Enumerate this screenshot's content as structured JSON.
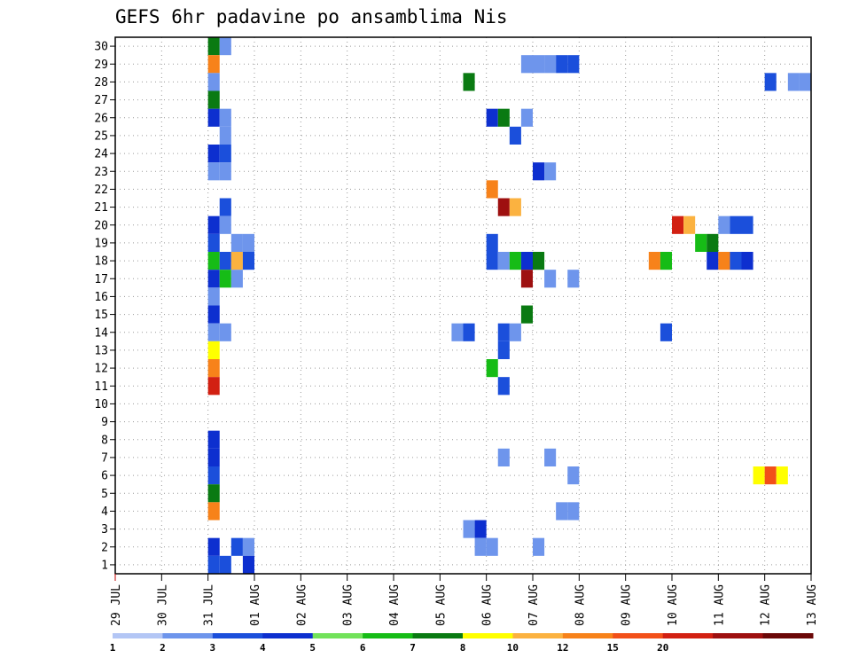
{
  "chart_data": {
    "type": "heatmap",
    "title": "GEFS 6hr padavine po ansamblima Nis",
    "xlabel": "",
    "ylabel": "",
    "x_tick_labels": [
      "29 JUL",
      "30 JUL",
      "31 JUL",
      "01 AUG",
      "02 AUG",
      "03 AUG",
      "04 AUG",
      "05 AUG",
      "06 AUG",
      "07 AUG",
      "08 AUG",
      "09 AUG",
      "10 AUG",
      "11 AUG",
      "12 AUG",
      "13 AUG"
    ],
    "x_unit": "day",
    "x_range_days": [
      0,
      15
    ],
    "y_tick_labels": [
      1,
      2,
      3,
      4,
      5,
      6,
      7,
      8,
      9,
      10,
      11,
      12,
      13,
      14,
      15,
      16,
      17,
      18,
      19,
      20,
      21,
      22,
      23,
      24,
      25,
      26,
      27,
      28,
      29,
      30
    ],
    "y_range": [
      0.5,
      30.5
    ],
    "grid": true,
    "colorbar": {
      "colors": [
        "#b3c6f5",
        "#6e95ec",
        "#1b4fdb",
        "#0d2fcf",
        "#72e25a",
        "#16bc16",
        "#0a7a12",
        "#ffff00",
        "#fbb240",
        "#f7821a",
        "#f25019",
        "#d22012",
        "#9e1010",
        "#6b0808"
      ],
      "labels": [
        "1",
        "2",
        "3",
        "4",
        "5",
        "6",
        "7",
        "8",
        "10",
        "12",
        "15",
        "20"
      ]
    },
    "cells": [
      [
        2.0,
        30,
        6
      ],
      [
        2.25,
        30,
        1
      ],
      [
        2.0,
        29,
        10
      ],
      [
        8.75,
        29,
        1
      ],
      [
        9.0,
        29,
        1
      ],
      [
        9.25,
        29,
        1
      ],
      [
        9.5,
        29,
        2
      ],
      [
        9.75,
        29,
        2
      ],
      [
        2.0,
        28,
        1
      ],
      [
        7.5,
        28,
        6
      ],
      [
        14.0,
        28,
        2
      ],
      [
        14.5,
        28,
        1
      ],
      [
        14.75,
        28,
        1
      ],
      [
        2.0,
        27,
        6
      ],
      [
        2.0,
        26,
        3
      ],
      [
        2.25,
        26,
        1
      ],
      [
        8.0,
        26,
        3
      ],
      [
        8.25,
        26,
        6
      ],
      [
        8.75,
        26,
        1
      ],
      [
        2.25,
        25,
        1
      ],
      [
        8.5,
        25,
        2
      ],
      [
        2.0,
        24,
        3
      ],
      [
        2.25,
        24,
        2
      ],
      [
        2.0,
        23,
        1
      ],
      [
        2.25,
        23,
        1
      ],
      [
        9.0,
        23,
        3
      ],
      [
        9.25,
        23,
        1
      ],
      [
        8.0,
        22,
        10
      ],
      [
        2.25,
        21,
        2
      ],
      [
        8.25,
        21,
        20
      ],
      [
        8.5,
        21,
        8
      ],
      [
        2.0,
        20,
        3
      ],
      [
        2.25,
        20,
        1
      ],
      [
        12.0,
        20,
        15
      ],
      [
        12.25,
        20,
        8
      ],
      [
        13.0,
        20,
        1
      ],
      [
        13.25,
        20,
        2
      ],
      [
        13.5,
        20,
        2
      ],
      [
        2.0,
        19,
        2
      ],
      [
        2.5,
        19,
        1
      ],
      [
        2.75,
        19,
        1
      ],
      [
        8.0,
        19,
        2
      ],
      [
        12.5,
        19,
        5
      ],
      [
        12.75,
        19,
        6
      ],
      [
        2.0,
        18,
        5
      ],
      [
        2.25,
        18,
        2
      ],
      [
        2.5,
        18,
        8
      ],
      [
        2.75,
        18,
        2
      ],
      [
        8.0,
        18,
        2
      ],
      [
        8.25,
        18,
        1
      ],
      [
        8.5,
        18,
        5
      ],
      [
        8.75,
        18,
        3
      ],
      [
        9.0,
        18,
        6
      ],
      [
        11.5,
        18,
        10
      ],
      [
        11.75,
        18,
        5
      ],
      [
        12.75,
        18,
        3
      ],
      [
        13.0,
        18,
        10
      ],
      [
        13.25,
        18,
        2
      ],
      [
        13.5,
        18,
        3
      ],
      [
        2.0,
        17,
        3
      ],
      [
        2.25,
        17,
        5
      ],
      [
        2.5,
        17,
        1
      ],
      [
        8.75,
        17,
        20
      ],
      [
        9.25,
        17,
        1
      ],
      [
        9.75,
        17,
        1
      ],
      [
        2.0,
        16,
        1
      ],
      [
        2.0,
        15,
        3
      ],
      [
        8.75,
        15,
        6
      ],
      [
        2.0,
        14,
        1
      ],
      [
        2.25,
        14,
        1
      ],
      [
        7.25,
        14,
        1
      ],
      [
        7.5,
        14,
        2
      ],
      [
        8.25,
        14,
        2
      ],
      [
        8.5,
        14,
        1
      ],
      [
        11.75,
        14,
        2
      ],
      [
        2.0,
        13,
        7
      ],
      [
        8.25,
        13,
        2
      ],
      [
        2.0,
        12,
        10
      ],
      [
        8.0,
        12,
        5
      ],
      [
        2.0,
        11,
        15
      ],
      [
        8.25,
        11,
        2
      ],
      [
        2.0,
        8,
        3
      ],
      [
        2.0,
        7,
        3
      ],
      [
        8.25,
        7,
        1
      ],
      [
        9.25,
        7,
        1
      ],
      [
        2.0,
        6,
        2
      ],
      [
        9.75,
        6,
        1
      ],
      [
        13.75,
        6,
        7
      ],
      [
        14.0,
        6,
        12
      ],
      [
        14.25,
        6,
        7
      ],
      [
        2.0,
        5,
        6
      ],
      [
        2.0,
        4,
        10
      ],
      [
        9.5,
        4,
        1
      ],
      [
        9.75,
        4,
        1
      ],
      [
        7.5,
        3,
        1
      ],
      [
        7.75,
        3,
        3
      ],
      [
        2.0,
        2,
        3
      ],
      [
        2.5,
        2,
        2
      ],
      [
        2.75,
        2,
        1
      ],
      [
        7.75,
        2,
        1
      ],
      [
        8.0,
        2,
        1
      ],
      [
        9.0,
        2,
        1
      ],
      [
        2.0,
        1,
        2
      ],
      [
        2.25,
        1,
        2
      ],
      [
        2.75,
        1,
        3
      ]
    ]
  }
}
